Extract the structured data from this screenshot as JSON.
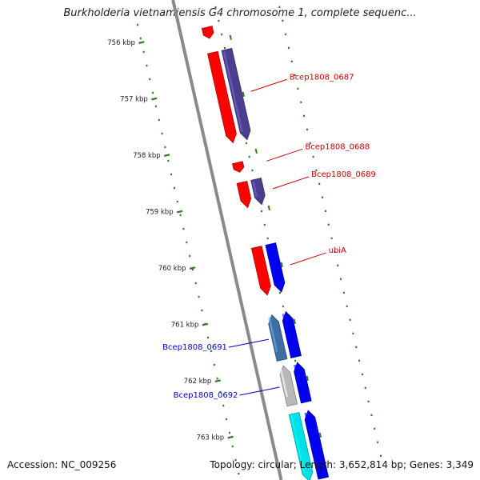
{
  "title": "Burkholderia vietnamiensis G4 chromosome 1, complete sequenc...",
  "footer": {
    "accession": "Accession: NC_009256",
    "summary": "Topology: circular; Length: 3,652,814 bp; Genes: 3,349"
  },
  "map": {
    "ticks": [
      {
        "label": "756 kbp",
        "kbp": 756
      },
      {
        "label": "757 kbp",
        "kbp": 757
      },
      {
        "label": "758 kbp",
        "kbp": 758
      },
      {
        "label": "759 kbp",
        "kbp": 759
      },
      {
        "label": "760 kbp",
        "kbp": 760
      },
      {
        "label": "761 kbp",
        "kbp": 761
      },
      {
        "label": "762 kbp",
        "kbp": 762
      },
      {
        "label": "763 kbp",
        "kbp": 763
      }
    ],
    "colors": {
      "backbone": "#8a8a8a",
      "tick": "#2e7d1f",
      "label_red": "#cc0000",
      "label_blue": "#0000cc"
    },
    "genes": [
      {
        "name": "",
        "start": 755.85,
        "end": 756.05,
        "strand": "+",
        "track": "cds",
        "color": "#ff0000"
      },
      {
        "name": "Bcep1808_0687",
        "start": 756.3,
        "end": 757.9,
        "strand": "+",
        "track": "cds",
        "color": "#ff0000",
        "label_side": "right"
      },
      {
        "name": "",
        "start": 756.3,
        "end": 757.9,
        "strand": "+",
        "track": "gene",
        "color": "#4b3f8c"
      },
      {
        "name": "Bcep1808_0688",
        "start": 758.25,
        "end": 758.42,
        "strand": "+",
        "track": "cds",
        "color": "#ff0000",
        "label_side": "right"
      },
      {
        "name": "Bcep1808_0689",
        "start": 758.6,
        "end": 759.05,
        "strand": "+",
        "track": "cds",
        "color": "#ff0000",
        "label_side": "right"
      },
      {
        "name": "",
        "start": 758.6,
        "end": 759.05,
        "strand": "+",
        "track": "gene",
        "color": "#4b3f8c"
      },
      {
        "name": "ubiA",
        "start": 759.75,
        "end": 760.6,
        "strand": "+",
        "track": "cds",
        "color": "#ff0000",
        "label_side": "right"
      },
      {
        "name": "",
        "start": 759.75,
        "end": 760.6,
        "strand": "+",
        "track": "gene",
        "color": "#0000ee"
      },
      {
        "name": "Bcep1808_0691",
        "start": 760.95,
        "end": 761.75,
        "strand": "-",
        "track": "cds",
        "color": "#3f6fa0",
        "label_side": "left"
      },
      {
        "name": "",
        "start": 760.95,
        "end": 761.75,
        "strand": "-",
        "track": "gene",
        "color": "#0000ee"
      },
      {
        "name": "Bcep1808_0692",
        "start": 761.85,
        "end": 762.55,
        "strand": "-",
        "track": "cds",
        "color": "#b8b8b8",
        "label_side": "left"
      },
      {
        "name": "",
        "start": 761.85,
        "end": 762.55,
        "strand": "-",
        "track": "gene",
        "color": "#0000ee"
      },
      {
        "name": "",
        "start": 762.7,
        "end": 763.9,
        "strand": "+",
        "track": "cds",
        "color": "#00e0e8"
      },
      {
        "name": "",
        "start": 762.7,
        "end": 763.9,
        "strand": "-",
        "track": "gene",
        "color": "#0000ee"
      }
    ]
  }
}
